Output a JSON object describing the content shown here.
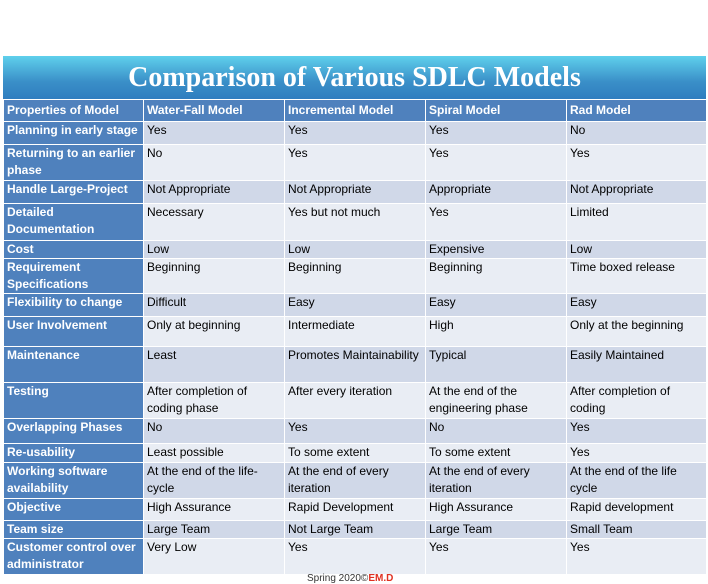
{
  "title": "Comparison of Various SDLC Models",
  "table": {
    "header": [
      "Properties of Model",
      "Water-Fall Model",
      "Incremental Model",
      "Spiral Model",
      "Rad Model"
    ],
    "rows": [
      [
        "Planning in early stage",
        "Yes",
        "Yes",
        "Yes",
        "No"
      ],
      [
        "Returning to an earlier phase",
        "No",
        "Yes",
        "Yes",
        "Yes"
      ],
      [
        "Handle Large-Project",
        "Not Appropriate",
        "Not Appropriate",
        "Appropriate",
        "Not Appropriate"
      ],
      [
        "Detailed Documentation",
        "Necessary",
        "Yes but not much",
        "Yes",
        "Limited"
      ],
      [
        "Cost",
        "Low",
        "Low",
        "Expensive",
        "Low"
      ],
      [
        "Requirement Specifications",
        "Beginning",
        "Beginning",
        "Beginning",
        "Time boxed release"
      ],
      [
        "Flexibility to change",
        "Difficult",
        "Easy",
        "Easy",
        "Easy"
      ],
      [
        "User Involvement",
        "Only at beginning",
        "Intermediate",
        "High",
        "Only at the beginning"
      ],
      [
        "Maintenance",
        "Least",
        "Promotes Maintainability",
        "Typical",
        "Easily Maintained"
      ],
      [
        "Testing",
        "After completion of coding phase",
        "After every iteration",
        "At the end of the engineering phase",
        "After completion of coding"
      ],
      [
        "Overlapping Phases",
        "No",
        "Yes",
        "No",
        "Yes"
      ],
      [
        "Re-usability",
        "Least possible",
        "To some extent",
        "To some extent",
        "Yes"
      ],
      [
        "Working software availability",
        "At the end of the life-cycle",
        "At the end of every iteration",
        "At the end of every iteration",
        "At the end of the life cycle"
      ],
      [
        "Objective",
        "High Assurance",
        "Rapid Development",
        "High Assurance",
        "Rapid development"
      ],
      [
        "Team size",
        "Large Team",
        "Not Large Team",
        "Large Team",
        "Small Team"
      ],
      [
        "Customer control over administrator",
        "Very Low",
        "Yes",
        "Yes",
        "Yes"
      ]
    ]
  },
  "footer": {
    "text": "Spring 2020©",
    "author": "EM.D"
  }
}
